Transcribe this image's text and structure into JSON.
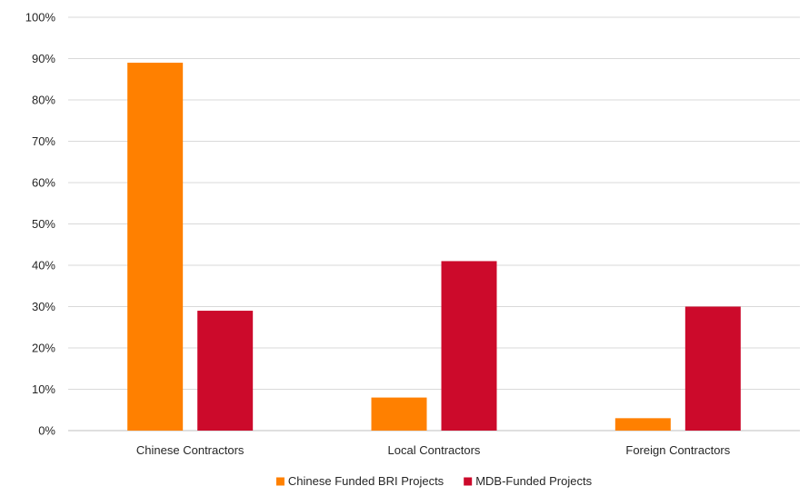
{
  "chart_data": {
    "type": "bar",
    "categories": [
      "Chinese Contractors",
      "Local Contractors",
      "Foreign Contractors"
    ],
    "series": [
      {
        "name": "Chinese Funded BRI Projects",
        "values": [
          89,
          8,
          3
        ],
        "color": "#ff8000"
      },
      {
        "name": "MDB-Funded Projects",
        "values": [
          29,
          41,
          30
        ],
        "color": "#cc0a2b"
      }
    ],
    "title": "",
    "xlabel": "",
    "ylabel": "",
    "ylim": [
      0,
      100
    ],
    "yticks": [
      "0%",
      "10%",
      "20%",
      "30%",
      "40%",
      "50%",
      "60%",
      "70%",
      "80%",
      "90%",
      "100%"
    ],
    "grid": true,
    "legend": "bottom",
    "gridline_color": "#d9d9d9",
    "axis_color": "#bfbfbf"
  }
}
